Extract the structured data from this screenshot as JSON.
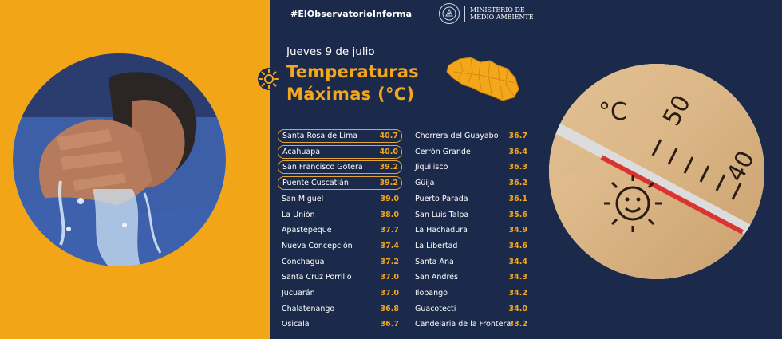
{
  "header": {
    "hashtag": "#ElObservatorioInforma",
    "ministry_line1": "MINISTERIO DE",
    "ministry_line2": "MEDIO AMBIENTE"
  },
  "date": "Jueves 9 de julio",
  "title_line1": "Temperaturas",
  "title_line2": "Máximas (°C)",
  "colors": {
    "accent": "#f5a71c",
    "left_panel": "#f2a516",
    "navy": "#1b2a4a"
  },
  "left_column": [
    {
      "name": "Santa Rosa de Lima",
      "value": "40.7",
      "highlighted": true
    },
    {
      "name": "Acahuapa",
      "value": "40.0",
      "highlighted": true
    },
    {
      "name": "San Francisco Gotera",
      "value": "39.2",
      "highlighted": true
    },
    {
      "name": "Puente Cuscatlán",
      "value": "39.2",
      "highlighted": true
    },
    {
      "name": "San Miguel",
      "value": "39.0",
      "highlighted": false
    },
    {
      "name": "La Unión",
      "value": "38.0",
      "highlighted": false
    },
    {
      "name": "Apastepeque",
      "value": "37.7",
      "highlighted": false
    },
    {
      "name": "Nueva Concepción",
      "value": "37.4",
      "highlighted": false
    },
    {
      "name": "Conchagua",
      "value": "37.2",
      "highlighted": false
    },
    {
      "name": "Santa Cruz Porrillo",
      "value": "37.0",
      "highlighted": false
    },
    {
      "name": "Jucuarán",
      "value": "37.0",
      "highlighted": false
    },
    {
      "name": "Chalatenango",
      "value": "36.8",
      "highlighted": false
    },
    {
      "name": "Osicala",
      "value": "36.7",
      "highlighted": false
    }
  ],
  "right_column": [
    {
      "name": "Chorrera del Guayabo",
      "value": "36.7"
    },
    {
      "name": "Cerrón Grande",
      "value": "36.4"
    },
    {
      "name": "Jiquilisco",
      "value": "36.3"
    },
    {
      "name": "Güija",
      "value": "36.2"
    },
    {
      "name": "Puerto Parada",
      "value": "36.1"
    },
    {
      "name": "San Luis Talpa",
      "value": "35.6"
    },
    {
      "name": "La Hachadura",
      "value": "34.9"
    },
    {
      "name": "La Libertad",
      "value": "34.6"
    },
    {
      "name": "Santa Ana",
      "value": "34.4"
    },
    {
      "name": "San Andrés",
      "value": "34.3"
    },
    {
      "name": "Ilopango",
      "value": "34.2"
    },
    {
      "name": "Guacotecti",
      "value": "34.0"
    },
    {
      "name": "Candelaria de la Frontera",
      "value": "33.2"
    }
  ],
  "icons": {
    "sun": "sun-icon",
    "map": "el-salvador-map-icon",
    "seal": "government-seal-icon"
  },
  "thermometer_scale": {
    "unit_mark": "°C",
    "tick_high": "50",
    "tick_low": "40"
  }
}
